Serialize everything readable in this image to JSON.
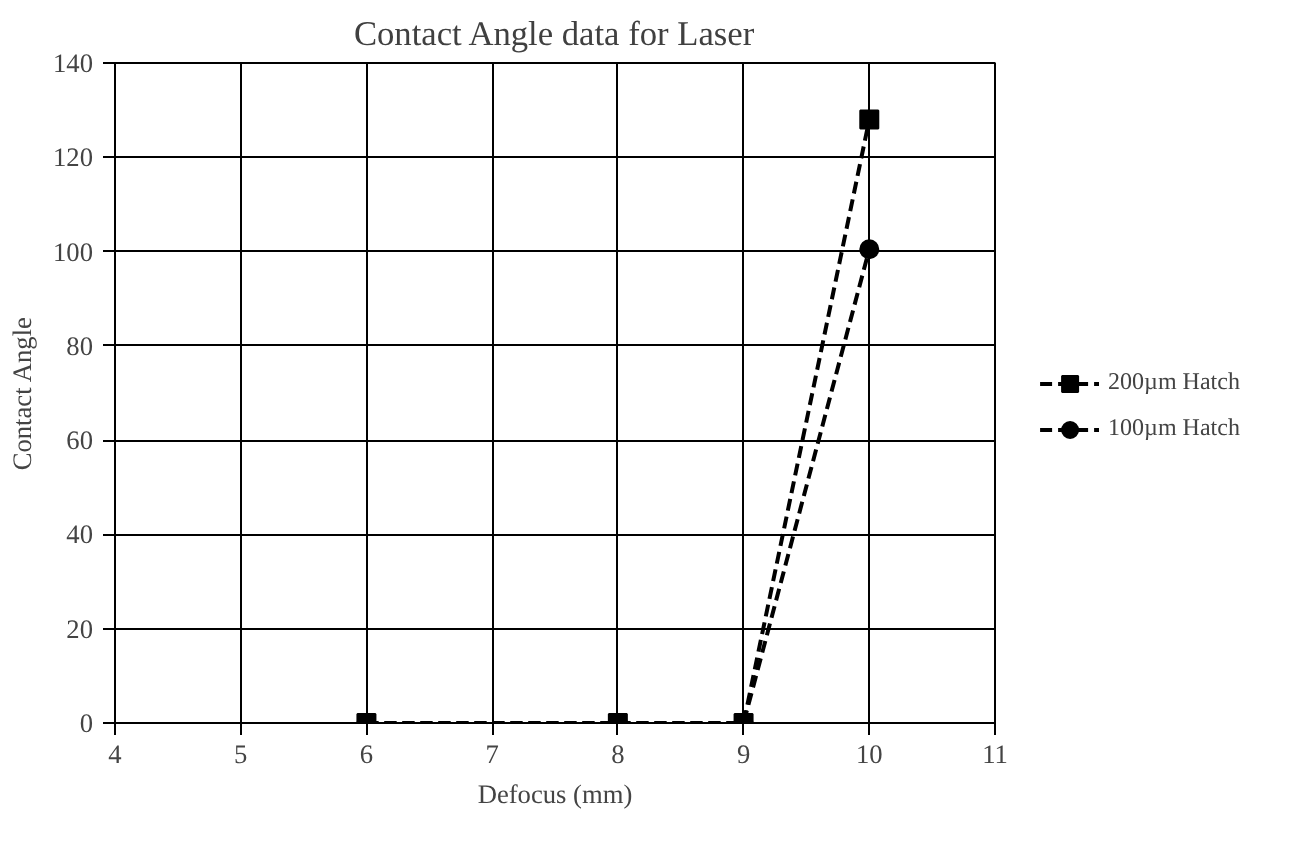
{
  "chart_data": {
    "type": "line",
    "title": "Contact Angle data for Laser",
    "xlabel": "Defocus (mm)",
    "ylabel": "Contact Angle",
    "x": [
      6,
      8,
      9,
      10
    ],
    "series": [
      {
        "name": "200µm Hatch",
        "color": "#000000",
        "marker": "square",
        "values": [
          0,
          0,
          0,
          128
        ]
      },
      {
        "name": "100µm Hatch",
        "color": "#000000",
        "marker": "circle",
        "values": [
          0,
          0,
          0,
          100.5
        ]
      }
    ],
    "xlim": [
      4,
      11
    ],
    "xticks": [
      4,
      5,
      6,
      7,
      8,
      9,
      10,
      11
    ],
    "ylim": [
      0,
      140
    ],
    "yticks": [
      0,
      20,
      40,
      60,
      80,
      100,
      120,
      140
    ],
    "grid": true,
    "legend": "right",
    "line_style": "dashed"
  }
}
